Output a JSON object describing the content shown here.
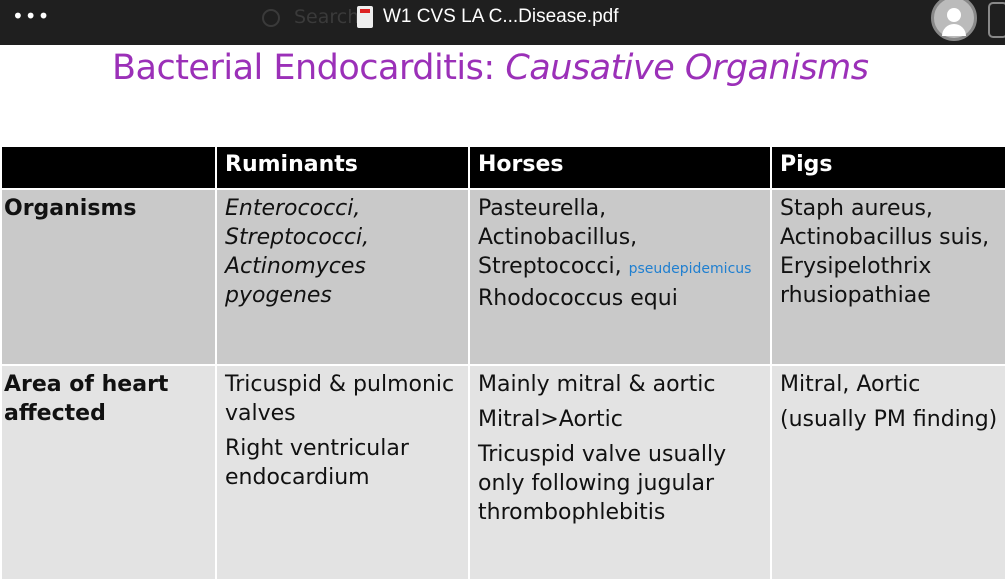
{
  "topbar": {
    "more_icon": "more-icon",
    "search_placeholder": "Search",
    "file_name": "W1 CVS LA C...Disease.pdf"
  },
  "slide": {
    "title_plain": "Bacterial Endocarditis: ",
    "title_italic": "Causative Organisms",
    "colors": {
      "title": "#9b30b8",
      "header_bg": "#000000",
      "row1_bg": "#c9c9c9",
      "row2_bg": "#e3e3e3",
      "note": "#1f7fd0"
    },
    "table": {
      "headers": [
        "",
        "Ruminants",
        "Horses",
        "Pigs"
      ],
      "rows": [
        {
          "label": "Organisms",
          "ruminants": [
            "Enterococci,",
            "Streptococci,",
            "Actinomyces",
            "pyogenes"
          ],
          "horses": [
            "Pasteurella,",
            "Actinobacillus,",
            "Streptococci,",
            "Rhodococcus equi"
          ],
          "horses_note": "pseudepidemicus",
          "pigs": [
            "Staph aureus,",
            "Actinobacillus suis,",
            "Erysipelothrix",
            "rhusiopathiae"
          ]
        },
        {
          "label": "Area of heart affected",
          "ruminants": [
            "Tricuspid & pulmonic valves",
            "Right ventricular endocardium"
          ],
          "horses": [
            "Mainly mitral & aortic",
            "Mitral>Aortic",
            "Tricuspid valve usually only following jugular thrombophlebitis"
          ],
          "pigs": [
            "Mitral, Aortic",
            "(usually PM finding)"
          ]
        }
      ]
    }
  }
}
